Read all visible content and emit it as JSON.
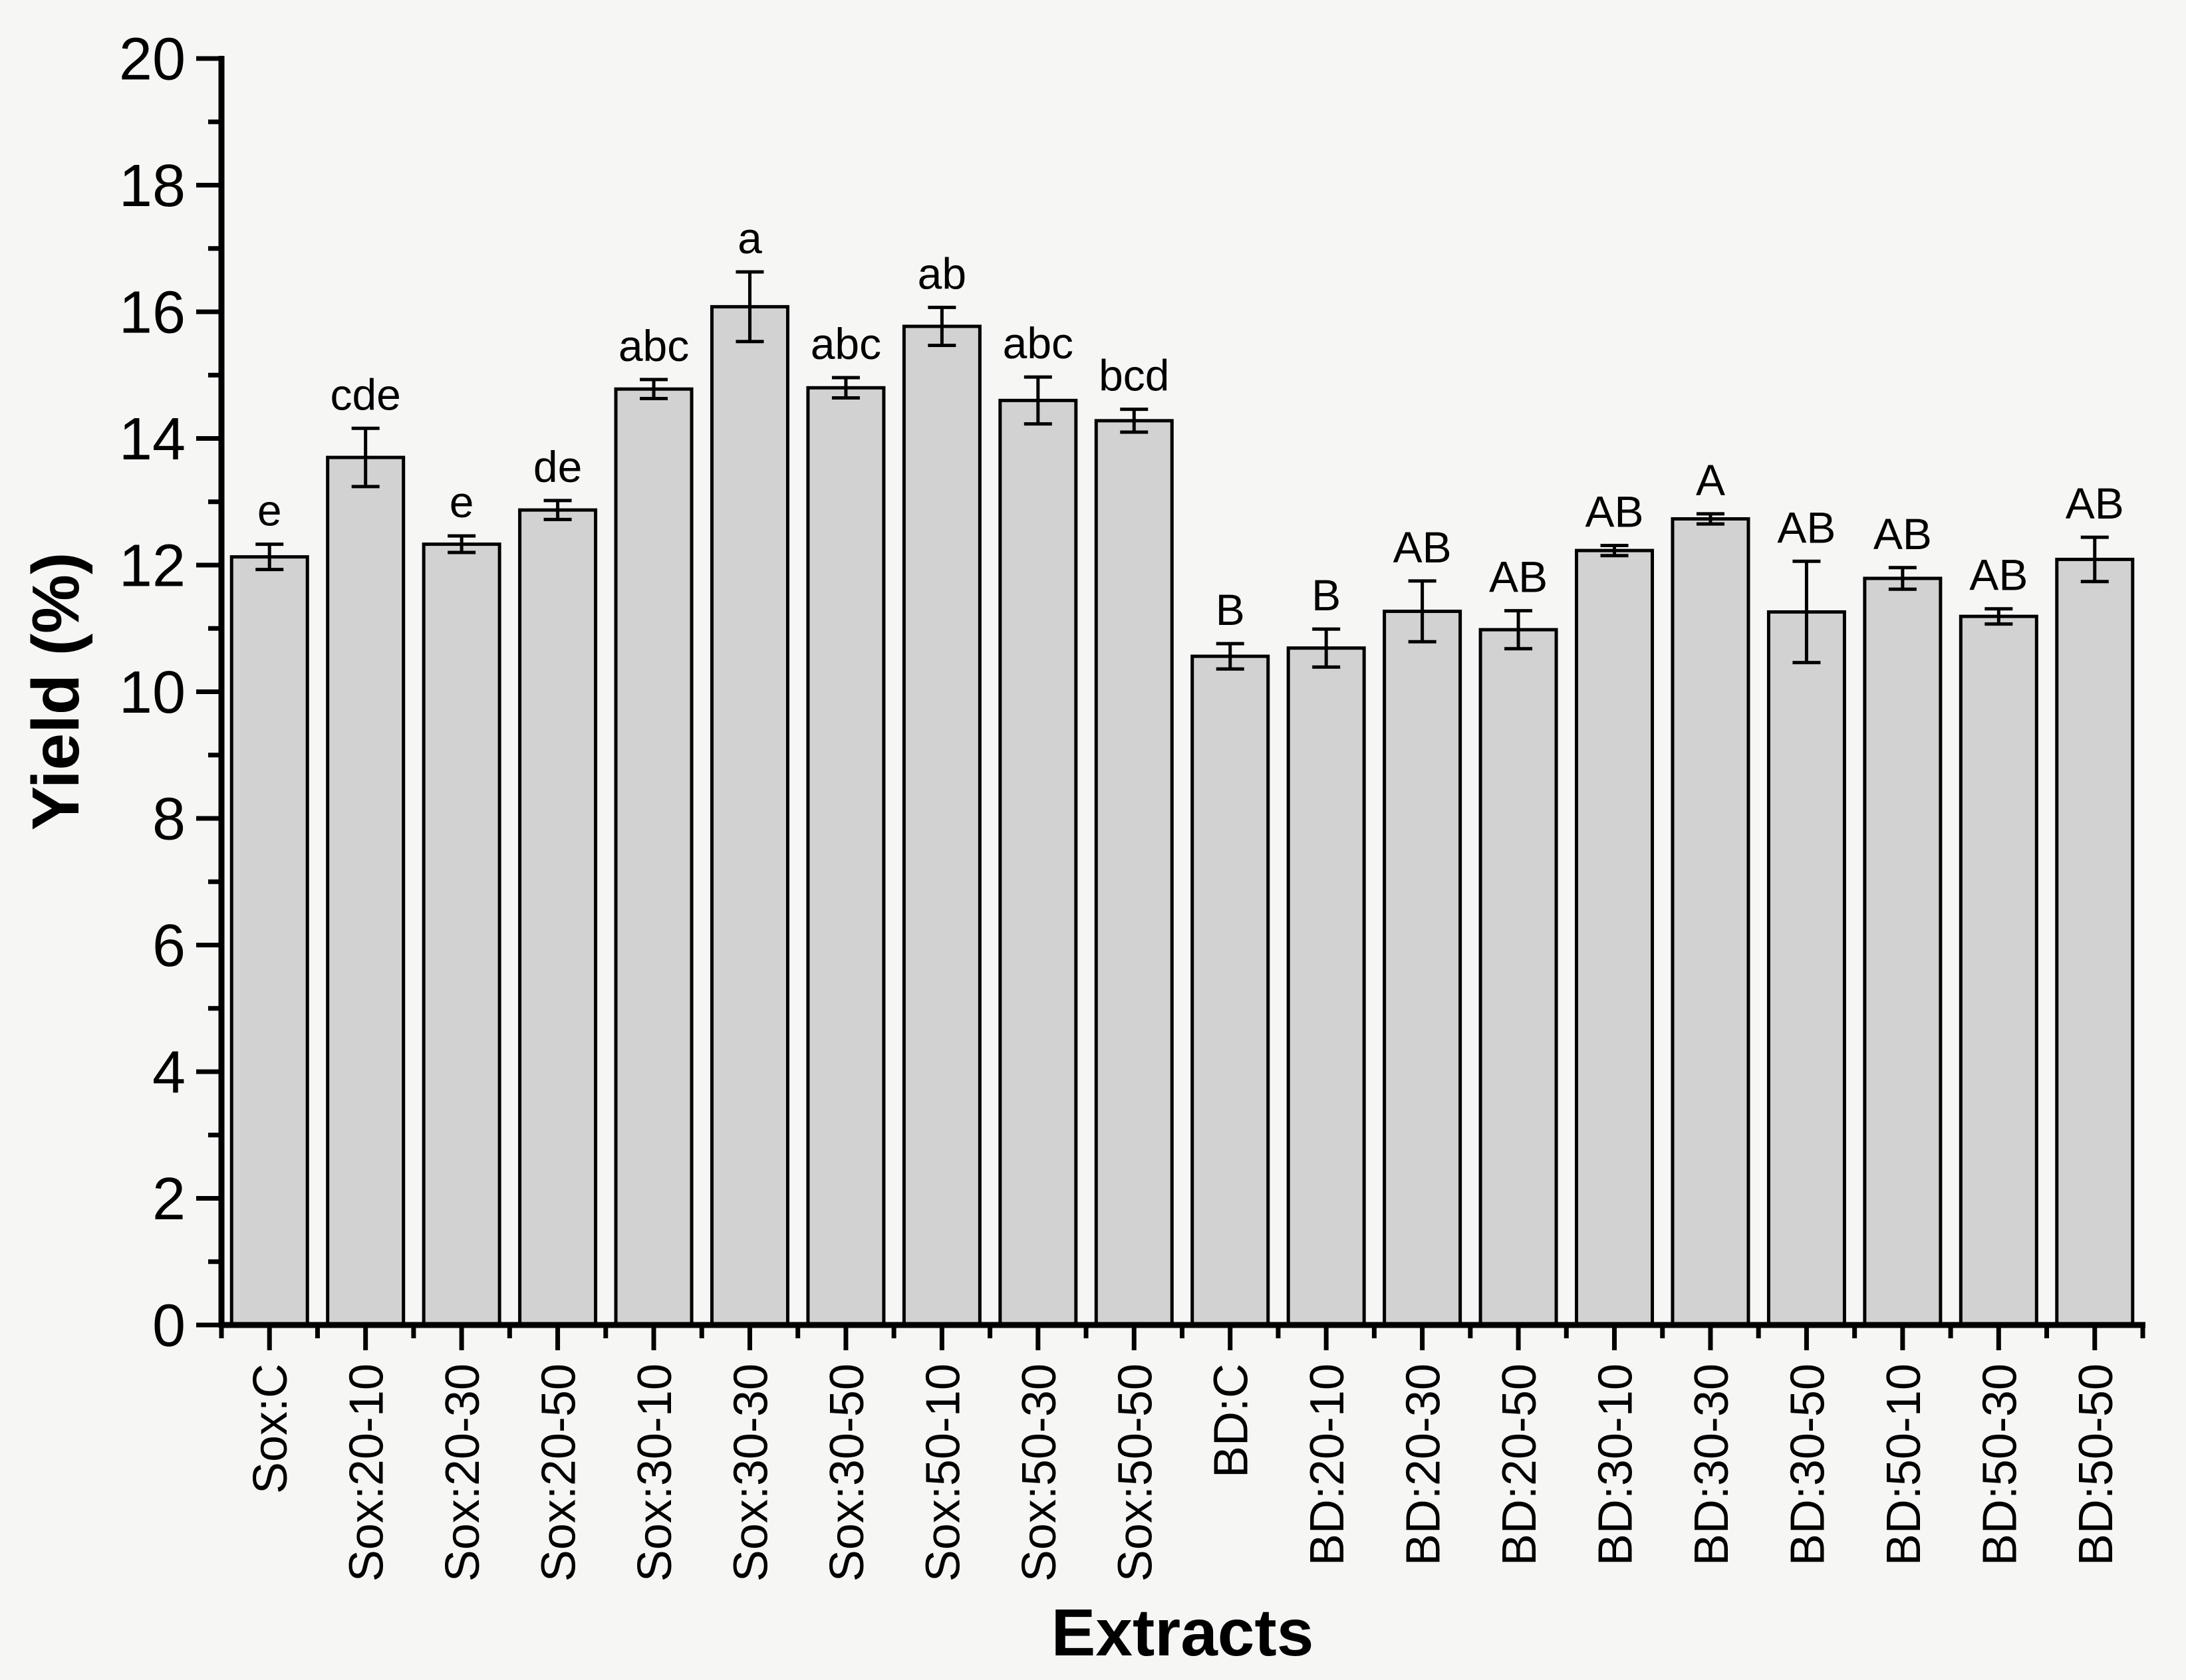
{
  "figure": {
    "background": "#f6f6f5",
    "text_color": "#000000"
  },
  "chart_data": {
    "type": "bar",
    "title": "",
    "xlabel": "Extracts",
    "ylabel": "Yield (%)",
    "ylim": [
      0,
      20
    ],
    "ytick_major_step": 2,
    "ytick_minor_step": 1,
    "grid": false,
    "legend": false,
    "bar_fill": "#d2d2d2",
    "bar_border": "#000000",
    "error_bar_color": "#000000",
    "categories": [
      "Sox:C",
      "Sox:20-10",
      "Sox:20-30",
      "Sox:20-50",
      "Sox:30-10",
      "Sox:30-30",
      "Sox:30-50",
      "Sox:50-10",
      "Sox:50-30",
      "Sox:50-50",
      "BD:C",
      "BD:20-10",
      "BD:20-30",
      "BD:20-50",
      "BD:30-10",
      "BD:30-30",
      "BD:30-50",
      "BD:50-10",
      "BD:50-30",
      "BD:50-50"
    ],
    "values": [
      12.13,
      13.7,
      12.33,
      12.87,
      14.78,
      16.08,
      14.8,
      15.77,
      14.6,
      14.28,
      10.56,
      10.69,
      11.27,
      10.98,
      12.23,
      12.73,
      11.26,
      11.79,
      11.19,
      12.09
    ],
    "errors": [
      0.2,
      0.46,
      0.13,
      0.15,
      0.15,
      0.55,
      0.16,
      0.3,
      0.37,
      0.18,
      0.2,
      0.3,
      0.48,
      0.3,
      0.08,
      0.08,
      0.8,
      0.17,
      0.12,
      0.35
    ],
    "significance_letters": [
      "e",
      "cde",
      "e",
      "de",
      "abc",
      "a",
      "abc",
      "ab",
      "abc",
      "bcd",
      "B",
      "B",
      "AB",
      "AB",
      "AB",
      "A",
      "AB",
      "AB",
      "AB",
      "AB"
    ]
  }
}
